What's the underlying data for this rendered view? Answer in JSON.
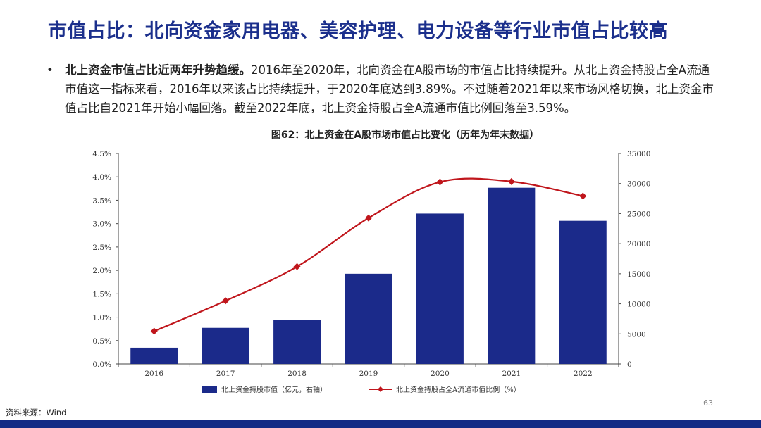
{
  "title": "市值占比：北向资金家用电器、美容护理、电力设备等行业市值占比较高",
  "bullet": {
    "marker": "•",
    "bold": "北上资金市值占比近两年升势趋缓。",
    "text": "2016年至2020年，北向资金在A股市场的市值占比持续提升。从北上资金持股占全A流通市值这一指标来看，2016年以来该占比持续提升，于2020年底达到3.89%。不过随着2021年以来市场风格切换，北上资金市值占比自2021年开始小幅回落。截至2022年底，北上资金持股占全A流通市值比例回落至3.59%。"
  },
  "chart_data": {
    "type": "bar",
    "title": "图62：北上资金在A股市场市值占比变化（历年为年末数据）",
    "categories": [
      "2016",
      "2017",
      "2018",
      "2019",
      "2020",
      "2021",
      "2022"
    ],
    "series": [
      {
        "name": "北上资金持股市值（亿元，右轴）",
        "type": "bar",
        "axis": "right",
        "color": "#1b2a8a",
        "values": [
          2700,
          6000,
          7300,
          15000,
          25000,
          29300,
          23800
        ]
      },
      {
        "name": "北上资金持股占全A流通市值比例（%）",
        "type": "line",
        "axis": "left",
        "color": "#c0161c",
        "values": [
          0.7,
          1.35,
          2.08,
          3.12,
          3.89,
          3.9,
          3.59
        ]
      }
    ],
    "y_left": {
      "min": 0,
      "max": 4.5,
      "ticks": [
        "0.0%",
        "0.5%",
        "1.0%",
        "1.5%",
        "2.0%",
        "2.5%",
        "3.0%",
        "3.5%",
        "4.0%",
        "4.5%"
      ]
    },
    "y_right": {
      "min": 0,
      "max": 35000,
      "ticks": [
        "0",
        "5000",
        "10000",
        "15000",
        "20000",
        "25000",
        "30000",
        "35000"
      ]
    },
    "legend_position": "bottom",
    "grid": false
  },
  "page_number": "63",
  "source": "资料来源：Wind"
}
